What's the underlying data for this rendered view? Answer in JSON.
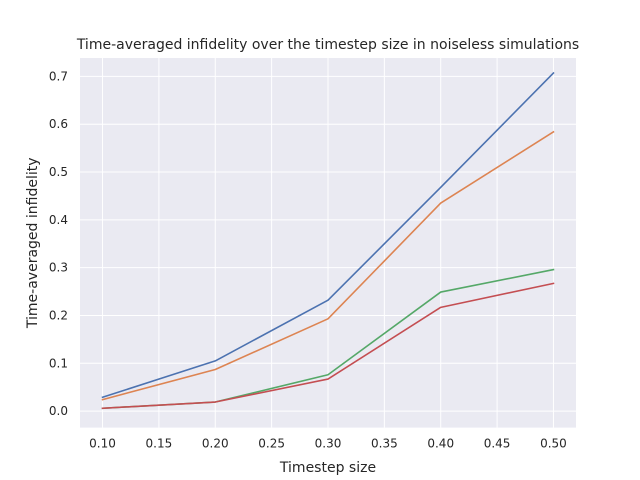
{
  "chart_data": {
    "type": "line",
    "title": "Time-averaged infidelity over the timestep size in noiseless simulations",
    "xlabel": "Timestep size",
    "ylabel": "Time-averaged infidelity",
    "xlim": [
      0.08,
      0.52
    ],
    "ylim": [
      -0.0345,
      0.7385
    ],
    "xticks": [
      "0.10",
      "0.15",
      "0.20",
      "0.25",
      "0.30",
      "0.35",
      "0.40",
      "0.45",
      "0.50"
    ],
    "yticks": [
      "0.0",
      "0.1",
      "0.2",
      "0.3",
      "0.4",
      "0.5",
      "0.6",
      "0.7"
    ],
    "grid": true,
    "background": "#eaeaf2",
    "x": [
      0.1,
      0.2,
      0.3,
      0.4,
      0.5
    ],
    "series": [
      {
        "color": "#4c72b0",
        "values": [
          0.029,
          0.105,
          0.232,
          0.468,
          0.707
        ]
      },
      {
        "color": "#dd8452",
        "values": [
          0.024,
          0.087,
          0.193,
          0.435,
          0.584
        ]
      },
      {
        "color": "#55a868",
        "values": [
          0.006,
          0.019,
          0.076,
          0.249,
          0.296
        ]
      },
      {
        "color": "#c44e52",
        "values": [
          0.006,
          0.019,
          0.067,
          0.217,
          0.267
        ]
      }
    ]
  }
}
